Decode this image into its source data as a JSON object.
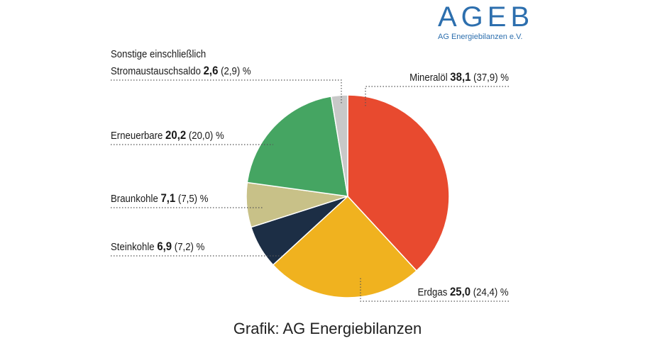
{
  "logo": {
    "name": "AGEB",
    "subtitle": "AG Energiebilanzen e.V.",
    "color": "#2d6fae"
  },
  "credit": "Grafik: AG Energiebilanzen",
  "chart_data": {
    "type": "pie",
    "unit": "%",
    "slices": [
      {
        "label": "Mineralöl",
        "value": 38.1,
        "value_text": "38,1",
        "previous_text": "(37,9)",
        "color": "#e84a2f"
      },
      {
        "label": "Erdgas",
        "value": 25.0,
        "value_text": "25,0",
        "previous_text": "(24,4)",
        "color": "#f0b21f"
      },
      {
        "label": "Steinkohle",
        "value": 6.9,
        "value_text": "6,9",
        "previous_text": "(7,2)",
        "color": "#1c2e45"
      },
      {
        "label": "Braunkohle",
        "value": 7.1,
        "value_text": "7,1",
        "previous_text": "(7,5)",
        "color": "#c8c188"
      },
      {
        "label": "Erneuerbare",
        "value": 20.2,
        "value_text": "20,2",
        "previous_text": "(20,0)",
        "color": "#45a562"
      },
      {
        "label_line1": "Sonstige einschließlich",
        "label": "Stromaustauschsaldo",
        "value": 2.6,
        "value_text": "2,6",
        "previous_text": "(2,9)",
        "color": "#c8c8c8"
      }
    ]
  }
}
